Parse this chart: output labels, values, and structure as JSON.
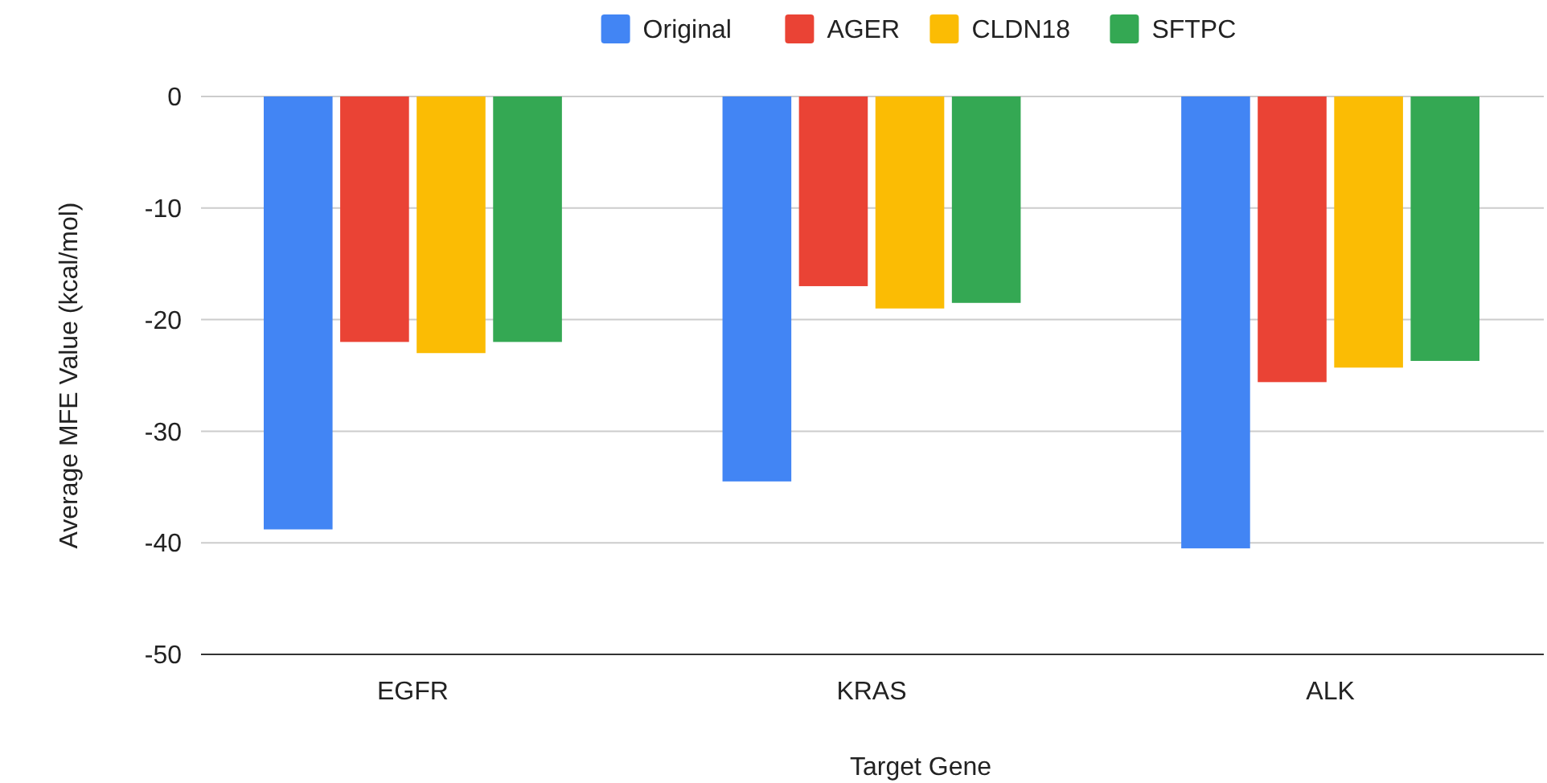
{
  "chart_data": {
    "type": "bar",
    "xlabel": "Target Gene",
    "ylabel": "Average MFE Value (kcal/mol)",
    "categories": [
      "EGFR",
      "KRAS",
      "ALK"
    ],
    "series": [
      {
        "name": "Original",
        "color": "#4285f4",
        "values": [
          -38.8,
          -34.5,
          -40.5
        ]
      },
      {
        "name": "AGER",
        "color": "#ea4335",
        "values": [
          -22,
          -17,
          -25.6
        ]
      },
      {
        "name": "CLDN18",
        "color": "#fbbc04",
        "values": [
          -23,
          -19,
          -24.3
        ]
      },
      {
        "name": "SFTPC",
        "color": "#34a853",
        "values": [
          -22,
          -18.5,
          -23.7
        ]
      }
    ],
    "ylim": [
      -50,
      0
    ],
    "yticks": [
      0,
      -10,
      -20,
      -30,
      -40,
      -50
    ],
    "grid": "y",
    "legend": "top"
  }
}
